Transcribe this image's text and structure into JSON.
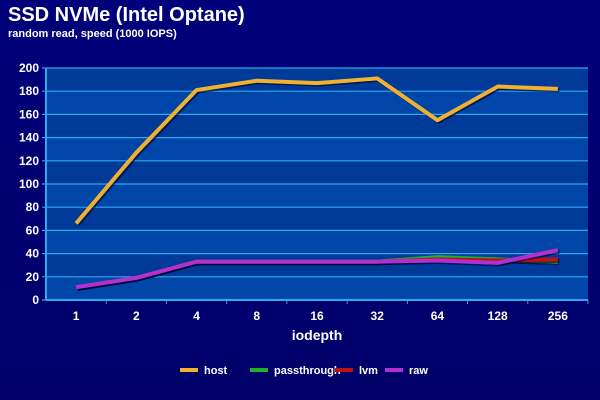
{
  "chart_data": {
    "type": "line",
    "title": "SSD NVMe (Intel Optane)",
    "subtitle": "random read, speed (1000 IOPS)",
    "xlabel": "iodepth",
    "ylabel": "",
    "categories": [
      "1",
      "2",
      "4",
      "8",
      "16",
      "32",
      "64",
      "128",
      "256"
    ],
    "ylim": [
      0,
      200
    ],
    "yticks": [
      "0",
      "20",
      "40",
      "60",
      "80",
      "100",
      "120",
      "140",
      "160",
      "180",
      "200"
    ],
    "grid": true,
    "legend": "bottom",
    "series": [
      {
        "name": "host",
        "color": "#f0b030",
        "values": [
          66,
          127,
          181,
          189,
          187,
          191,
          155,
          184,
          182
        ]
      },
      {
        "name": "passthrough",
        "color": "#20b030",
        "values": [
          11,
          19,
          33,
          33,
          33,
          33,
          37,
          35,
          33
        ]
      },
      {
        "name": "lvm",
        "color": "#c01010",
        "values": [
          11,
          19,
          33,
          33,
          33,
          33,
          35,
          34,
          35
        ]
      },
      {
        "name": "raw",
        "color": "#b030d0",
        "values": [
          11,
          19,
          33,
          33,
          33,
          33,
          34,
          32,
          43
        ]
      }
    ]
  }
}
